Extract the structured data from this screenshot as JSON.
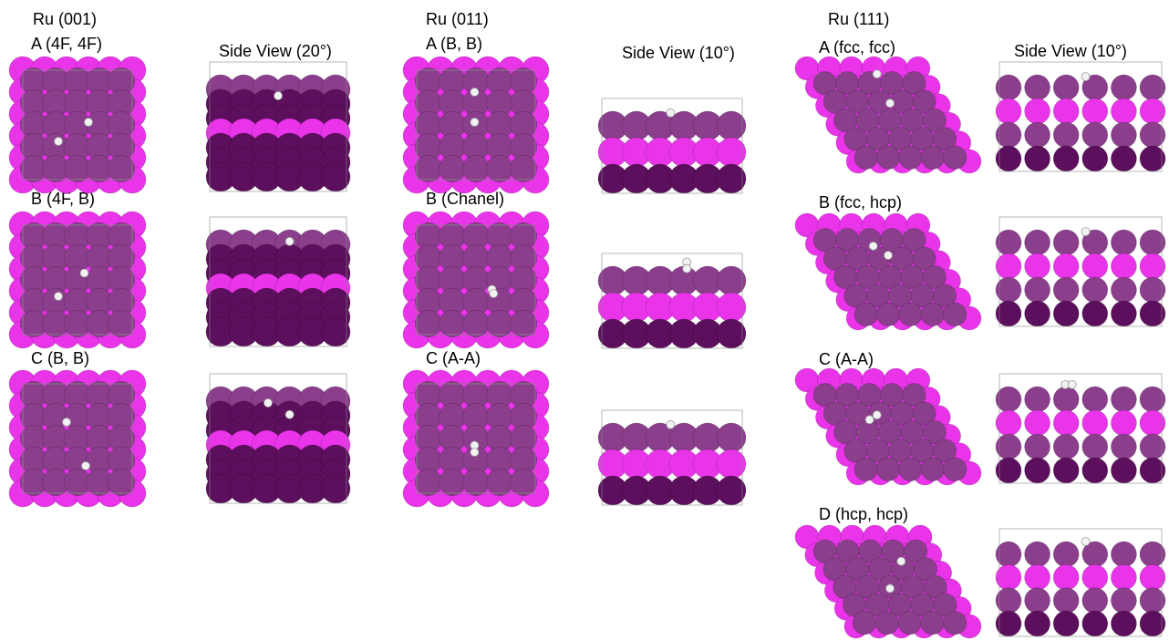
{
  "colors": {
    "layer_top": "#8a3e8c",
    "layer_sub": "#ea34ea",
    "layer_deep": "#5c0f5c",
    "hydrogen": "#f2f2f2",
    "cell_line": "#888888",
    "background": "#ffffff"
  },
  "columns": [
    {
      "title": "Ru (001)",
      "side_label": "Side View (20°)",
      "panels": [
        {
          "label": "A (4F, 4F)"
        },
        {
          "label": "B (4F, B)"
        },
        {
          "label": "C (B, B)"
        }
      ]
    },
    {
      "title": "Ru (011)",
      "side_label": "Side View (10°)",
      "panels": [
        {
          "label": "A (B, B)"
        },
        {
          "label": "B (Chanel)"
        },
        {
          "label": "C (A-A)"
        }
      ]
    },
    {
      "title": "Ru (111)",
      "side_label": "Side View (10°)",
      "panels": [
        {
          "label": "A (fcc, fcc)"
        },
        {
          "label": "B (fcc, hcp)"
        },
        {
          "label": "C (A-A)"
        },
        {
          "label": "D (hcp, hcp)"
        }
      ]
    }
  ]
}
